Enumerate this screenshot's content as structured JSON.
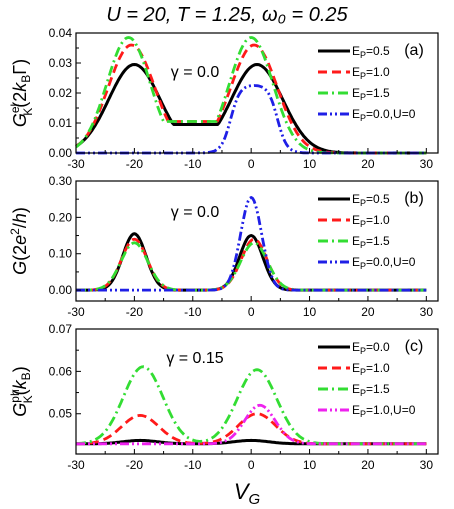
{
  "title": "U = 20, T = 1.25, ω₀ = 0.25",
  "xlabel": "V_G",
  "colors": {
    "black": "#000000",
    "red": "#ff1a1a",
    "green": "#33dd33",
    "blue": "#1f1fe6",
    "magenta": "#ee22ee"
  },
  "chart_data": [
    {
      "type": "line",
      "panel_label": "(a)",
      "annotation": "γ = 0.0",
      "ylabel": "G^el_K(2k_BΓ)",
      "xlim": [
        -30,
        32
      ],
      "ylim": [
        0,
        0.04
      ],
      "xticks": [
        "-30",
        "-20",
        "-10",
        "0",
        "10",
        "20",
        "30"
      ],
      "yticks": [
        "0.00",
        "0.01",
        "0.02",
        "0.03",
        "0.04"
      ],
      "legend_position": "top-right",
      "series": [
        {
          "name": "E_P = 0.5",
          "color": "black",
          "dash": "solid",
          "baseline": 0,
          "peaks": [
            [
              -20,
              0.0295,
              4.4
            ],
            [
              1,
              0.0295,
              4.4
            ]
          ],
          "valley": [
            -10,
            0.0095
          ]
        },
        {
          "name": "E_P = 1.0",
          "color": "red",
          "dash": "dash",
          "baseline": 0,
          "peaks": [
            [
              -20.5,
              0.036,
              4.0
            ],
            [
              0.5,
              0.036,
              4.0
            ]
          ],
          "valley": [
            -10,
            0.0105
          ]
        },
        {
          "name": "E_P = 1.5",
          "color": "green",
          "dash": "dashdot",
          "baseline": 0,
          "peaks": [
            [
              -21,
              0.0385,
              3.7
            ],
            [
              0,
              0.0385,
              3.7
            ]
          ],
          "valley": [
            -10,
            0.0105
          ]
        },
        {
          "name": "E_P = 0.0, U = 0",
          "color": "blue",
          "dash": "dashdotdot",
          "baseline": 0,
          "plateau": [
            -3.5,
            4.5,
            0.0228,
            2.4
          ]
        }
      ]
    },
    {
      "type": "line",
      "panel_label": "(b)",
      "annotation": "γ = 0.0",
      "ylabel": "G(2e²/h)",
      "xlim": [
        -30,
        32
      ],
      "ylim": [
        -0.03,
        0.3
      ],
      "xticks": [
        "-30",
        "-20",
        "-10",
        "0",
        "10",
        "20",
        "30"
      ],
      "yticks": [
        "0.00",
        "0.10",
        "0.20",
        "0.30"
      ],
      "legend_position": "top-right",
      "series": [
        {
          "name": "E_P = 0.5",
          "color": "black",
          "dash": "solid",
          "baseline": 0,
          "peaks": [
            [
              -20,
              0.155,
              2.0
            ],
            [
              0,
              0.15,
              2.0
            ]
          ]
        },
        {
          "name": "E_P = 1.0",
          "color": "red",
          "dash": "dash",
          "baseline": 0,
          "peaks": [
            [
              -20,
              0.14,
              2.2
            ],
            [
              0.5,
              0.14,
              2.2
            ]
          ]
        },
        {
          "name": "E_P = 1.5",
          "color": "green",
          "dash": "dashdot",
          "baseline": 0,
          "peaks": [
            [
              -20,
              0.13,
              2.3
            ],
            [
              0.5,
              0.13,
              2.3
            ]
          ]
        },
        {
          "name": "E_P = 0.0, U = 0",
          "color": "blue",
          "dash": "dashdotdot",
          "baseline": 0,
          "peaks": [
            [
              0,
              0.255,
              1.8
            ]
          ]
        }
      ]
    },
    {
      "type": "line",
      "panel_label": "(c)",
      "annotation": "γ = 0.15",
      "ylabel": "G^ph_K(k_B)",
      "xlim": [
        -30,
        32
      ],
      "ylim": [
        0.0405,
        0.07
      ],
      "xticks": [
        "-30",
        "-20",
        "-10",
        "0",
        "10",
        "20",
        "30"
      ],
      "yticks": [
        "0.05",
        "0.06",
        "0.07"
      ],
      "legend_position": "top-right",
      "series": [
        {
          "name": "E_P = 0.0",
          "color": "black",
          "dash": "solid",
          "baseline": 0.0429,
          "peaks": [
            [
              -19,
              0.0008,
              3.0
            ],
            [
              0,
              0.0008,
              3.0
            ]
          ]
        },
        {
          "name": "E_P = 1.0",
          "color": "red",
          "dash": "dash",
          "baseline": 0.0429,
          "peaks": [
            [
              -19,
              0.0067,
              3.2
            ],
            [
              1,
              0.0071,
              3.2
            ]
          ]
        },
        {
          "name": "E_P = 1.5",
          "color": "green",
          "dash": "dashdot",
          "baseline": 0.0429,
          "peaks": [
            [
              -18.5,
              0.0182,
              3.4
            ],
            [
              1,
              0.0175,
              3.4
            ]
          ]
        },
        {
          "name": "E_P = 1.0, U = 0",
          "color": "magenta",
          "dash": "dashdotdot",
          "baseline": 0.0429,
          "peaks": [
            [
              1.5,
              0.0091,
              2.6
            ]
          ]
        }
      ]
    }
  ]
}
